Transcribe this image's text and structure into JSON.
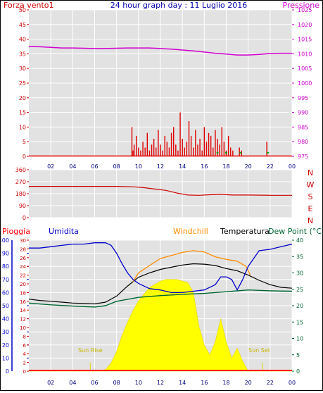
{
  "header": {
    "left": "Forza vento1",
    "center": "24 hour graph day : 11 Luglio 2016",
    "right": "Pressione"
  },
  "colors": {
    "wind": "#e00000",
    "gust": "#00aa00",
    "pressure": "#d000d0",
    "direction": "#cc0000",
    "humidity": "#0000cc",
    "windchill": "#ff8c00",
    "temperature": "#000000",
    "dewpoint": "#006633",
    "solar": "#ffff00",
    "rain": "#ff0000",
    "panel_bg": "#e2e2e2",
    "grid": "#ffffff"
  },
  "compass": [
    "N",
    "W",
    "S",
    "E",
    "N"
  ],
  "bottom_legend": {
    "pioggia": "Pioggia",
    "umidita": "Umidita",
    "windchill": "Windchill",
    "temperatura": "Temperatura",
    "dewpoint": "Dew Point (°C"
  },
  "sun": {
    "rise": "Sun Rise",
    "set": "Sun Set"
  },
  "x_ticks": [
    "02",
    "04",
    "06",
    "08",
    "10",
    "12",
    "14",
    "16",
    "18",
    "20",
    "22",
    "00"
  ],
  "chart_data": [
    {
      "type": "bar",
      "title": "",
      "ylabel_left": "Forza vento1",
      "ylabel_right": "Pressione",
      "ylim": [
        0,
        50
      ],
      "yticks": [
        0,
        5,
        10,
        15,
        20,
        25,
        30,
        35,
        40,
        45,
        50
      ],
      "ylim_right": [
        975,
        1025
      ],
      "yticks_right": [
        975,
        980,
        985,
        990,
        995,
        1000,
        1005,
        1010,
        1015,
        1020,
        1025
      ],
      "xlim": [
        0,
        24
      ],
      "wind_bars": [
        [
          9.4,
          10
        ],
        [
          9.5,
          2
        ],
        [
          9.6,
          4
        ],
        [
          9.8,
          7
        ],
        [
          10.0,
          3
        ],
        [
          10.2,
          2
        ],
        [
          10.4,
          5
        ],
        [
          10.6,
          3
        ],
        [
          10.8,
          8
        ],
        [
          11.0,
          2
        ],
        [
          11.2,
          4
        ],
        [
          11.4,
          6
        ],
        [
          11.6,
          3
        ],
        [
          11.8,
          9
        ],
        [
          12.0,
          4
        ],
        [
          12.2,
          2
        ],
        [
          12.4,
          7
        ],
        [
          12.6,
          5
        ],
        [
          12.8,
          3
        ],
        [
          13.0,
          8
        ],
        [
          13.2,
          10
        ],
        [
          13.4,
          4
        ],
        [
          13.6,
          2
        ],
        [
          13.8,
          15
        ],
        [
          14.0,
          6
        ],
        [
          14.2,
          3
        ],
        [
          14.4,
          5
        ],
        [
          14.6,
          12
        ],
        [
          14.8,
          7
        ],
        [
          15.0,
          3
        ],
        [
          15.2,
          9
        ],
        [
          15.4,
          4
        ],
        [
          15.6,
          6
        ],
        [
          15.8,
          2
        ],
        [
          16.0,
          10
        ],
        [
          16.2,
          5
        ],
        [
          16.4,
          8
        ],
        [
          16.6,
          7
        ],
        [
          16.8,
          3
        ],
        [
          17.0,
          9
        ],
        [
          17.2,
          6
        ],
        [
          17.4,
          4
        ],
        [
          17.6,
          10
        ],
        [
          17.8,
          5
        ],
        [
          18.0,
          2
        ],
        [
          18.2,
          7
        ],
        [
          18.4,
          3
        ],
        [
          18.6,
          2
        ],
        [
          19.2,
          3
        ],
        [
          19.4,
          2
        ],
        [
          21.7,
          5
        ]
      ],
      "gust_points": [
        [
          17.2,
          1
        ],
        [
          18.0,
          1
        ],
        [
          19.3,
          1
        ],
        [
          21.8,
          1
        ]
      ],
      "pressure": {
        "x": [
          0,
          1,
          2,
          3,
          4,
          5,
          6,
          7,
          8,
          9,
          10,
          11,
          12,
          13,
          14,
          15,
          16,
          17,
          18,
          19,
          20,
          21,
          22,
          23,
          24
        ],
        "y": [
          1012.5,
          1012.4,
          1012.2,
          1012.0,
          1012.0,
          1011.9,
          1011.8,
          1011.8,
          1011.9,
          1012.0,
          1012.0,
          1012.0,
          1011.8,
          1011.6,
          1011.3,
          1011.0,
          1010.6,
          1010.2,
          1009.9,
          1009.6,
          1009.6,
          1009.8,
          1010.1,
          1010.2,
          1010.2
        ]
      }
    },
    {
      "type": "line",
      "title": "",
      "ylabel": "",
      "ylim": [
        0,
        360
      ],
      "yticks": [
        0,
        90,
        180,
        270,
        360
      ],
      "wind_direction": {
        "x": [
          0,
          8,
          9.5,
          10.5,
          11.5,
          12.5,
          13.5,
          14.5,
          15.5,
          16.5,
          17.5,
          18.5,
          20,
          22,
          24
        ],
        "y": [
          235,
          235,
          232,
          225,
          215,
          205,
          185,
          170,
          168,
          172,
          175,
          170,
          170,
          168,
          168
        ]
      }
    },
    {
      "type": "line",
      "title": "",
      "ylabel_left": "Umidita",
      "ylabel_left2": "Pioggia",
      "ylabel_right": "Dew Point (°C",
      "ylim_humidity": [
        0,
        100
      ],
      "yticks_humidity": [
        0,
        10,
        20,
        30,
        40,
        50,
        60,
        70,
        80,
        90,
        100
      ],
      "ylim_temp": [
        0,
        30
      ],
      "yticks_temp": [
        0,
        2,
        4,
        6,
        8,
        10,
        12,
        14,
        16,
        18,
        20,
        22,
        24,
        26,
        28,
        30
      ],
      "ylim_right": [
        0,
        40
      ],
      "yticks_right": [
        0,
        5,
        10,
        15,
        20,
        25,
        30,
        35,
        40
      ],
      "humidity": {
        "x": [
          0,
          1,
          2,
          3,
          4,
          5,
          6,
          7,
          7.5,
          8,
          8.5,
          9,
          9.5,
          10,
          11,
          12,
          13,
          14,
          15,
          16,
          17,
          17.5,
          18,
          18.5,
          19,
          19.5,
          20,
          20.5,
          21,
          22,
          23,
          24
        ],
        "y": [
          94,
          94,
          95,
          96,
          97,
          97,
          98,
          98,
          96,
          90,
          82,
          75,
          70,
          67,
          63,
          62,
          60,
          60,
          61,
          62,
          66,
          72,
          72,
          70,
          62,
          70,
          80,
          86,
          92,
          93,
          95,
          97
        ]
      },
      "temperature": {
        "x": [
          0,
          1,
          2,
          3,
          4,
          5,
          6,
          7,
          8,
          9,
          10,
          11,
          12,
          13,
          14,
          15,
          16,
          17,
          18,
          19,
          20,
          21,
          22,
          23,
          24
        ],
        "y": [
          16.5,
          16.2,
          16.0,
          15.8,
          15.6,
          15.5,
          15.4,
          15.8,
          17.2,
          19.5,
          21.5,
          22.5,
          23.3,
          23.8,
          24.3,
          24.6,
          24.5,
          24.2,
          23.5,
          23.0,
          22.0,
          20.8,
          19.8,
          19.2,
          19.0
        ]
      },
      "windchill": {
        "x": [
          9.5,
          10,
          11,
          12,
          13,
          14,
          15,
          16,
          17,
          18,
          19,
          19.8,
          20.2
        ],
        "y": [
          20.5,
          22.5,
          24.2,
          25.8,
          26.5,
          27.2,
          27.6,
          27.3,
          26.2,
          25.6,
          25.2,
          24.0,
          22.0
        ]
      },
      "dewpoint": {
        "x": [
          0,
          2,
          4,
          6,
          7,
          8,
          10,
          12,
          14,
          16,
          18,
          20,
          22,
          24
        ],
        "y": [
          15.6,
          15.2,
          14.9,
          14.7,
          15.0,
          16.0,
          16.9,
          17.3,
          17.6,
          17.8,
          18.2,
          18.6,
          18.4,
          18.3
        ]
      },
      "solar_radiation": {
        "x": [
          0,
          5.5,
          6.5,
          7,
          7.5,
          8,
          8.5,
          9,
          9.5,
          10,
          10.5,
          11,
          11.5,
          12,
          12.5,
          13,
          13.5,
          14,
          14.5,
          15,
          15.5,
          16,
          16.5,
          17,
          17.5,
          18,
          18.5,
          19,
          19.5,
          20,
          24
        ],
        "y": [
          0,
          0,
          0,
          0.5,
          2.5,
          6,
          11,
          15,
          18.5,
          21.5,
          23.5,
          25.5,
          26.5,
          27.5,
          28,
          28,
          28,
          27.5,
          27,
          24,
          14,
          8,
          5,
          9,
          16,
          9,
          4,
          7,
          3,
          0,
          0
        ]
      },
      "rain": 0
    }
  ]
}
